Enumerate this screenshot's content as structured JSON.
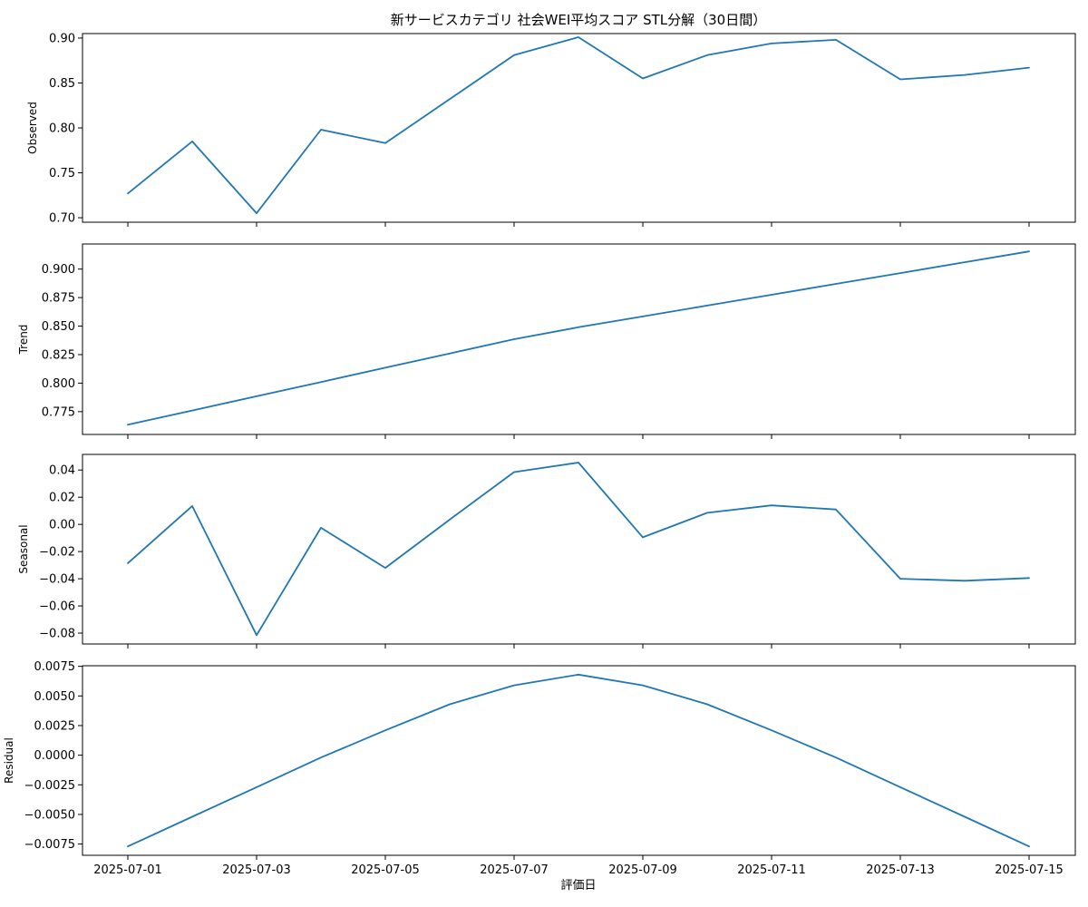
{
  "chart_data": {
    "type": "line",
    "title": "新サービスカテゴリ 社会WEI平均スコア STL分解（30日間）",
    "xlabel": "評価日",
    "x": [
      "2025-07-01",
      "2025-07-02",
      "2025-07-03",
      "2025-07-04",
      "2025-07-05",
      "2025-07-06",
      "2025-07-07",
      "2025-07-08",
      "2025-07-09",
      "2025-07-10",
      "2025-07-11",
      "2025-07-12",
      "2025-07-13",
      "2025-07-14",
      "2025-07-15"
    ],
    "xticks": [
      "2025-07-01",
      "2025-07-03",
      "2025-07-05",
      "2025-07-07",
      "2025-07-09",
      "2025-07-11",
      "2025-07-13",
      "2025-07-15"
    ],
    "line_color": "#1f77b4",
    "grid": false,
    "panels": [
      {
        "ylabel": "Observed",
        "ylim": [
          0.695,
          0.905
        ],
        "yticks": [
          "0.70",
          "0.75",
          "0.80",
          "0.85",
          "0.90"
        ],
        "values": [
          0.727,
          0.785,
          0.705,
          0.798,
          0.783,
          0.832,
          0.881,
          0.901,
          0.855,
          0.881,
          0.894,
          0.898,
          0.854,
          0.859,
          0.867
        ]
      },
      {
        "ylabel": "Trend",
        "ylim": [
          0.755,
          0.922
        ],
        "yticks": [
          "0.775",
          "0.800",
          "0.825",
          "0.850",
          "0.875",
          "0.900"
        ],
        "values": [
          0.7635,
          0.776,
          0.7885,
          0.801,
          0.8135,
          0.826,
          0.8385,
          0.849,
          0.8585,
          0.868,
          0.8775,
          0.887,
          0.8965,
          0.906,
          0.9155
        ]
      },
      {
        "ylabel": "Seasonal",
        "ylim": [
          -0.088,
          0.0515
        ],
        "yticks": [
          "0.04",
          "0.02",
          "0.00",
          "−0.02",
          "−0.04",
          "−0.06",
          "−0.08"
        ],
        "values": [
          -0.0285,
          0.0135,
          -0.0815,
          -0.0025,
          -0.032,
          0.0035,
          0.0385,
          0.0455,
          -0.0095,
          0.0085,
          0.014,
          0.011,
          -0.04,
          -0.0415,
          -0.0395
        ]
      },
      {
        "ylabel": "Residual",
        "ylim": [
          -0.00845,
          0.00755
        ],
        "yticks": [
          "0.0075",
          "0.0050",
          "0.0025",
          "0.0000",
          "−0.0025",
          "−0.0050",
          "−0.0075"
        ],
        "values": [
          -0.0077,
          -0.0052,
          -0.0027,
          -0.0002,
          0.0021,
          0.0043,
          0.0059,
          0.0068,
          0.0059,
          0.0043,
          0.0021,
          -0.0002,
          -0.0027,
          -0.0052,
          -0.0077
        ]
      }
    ]
  }
}
